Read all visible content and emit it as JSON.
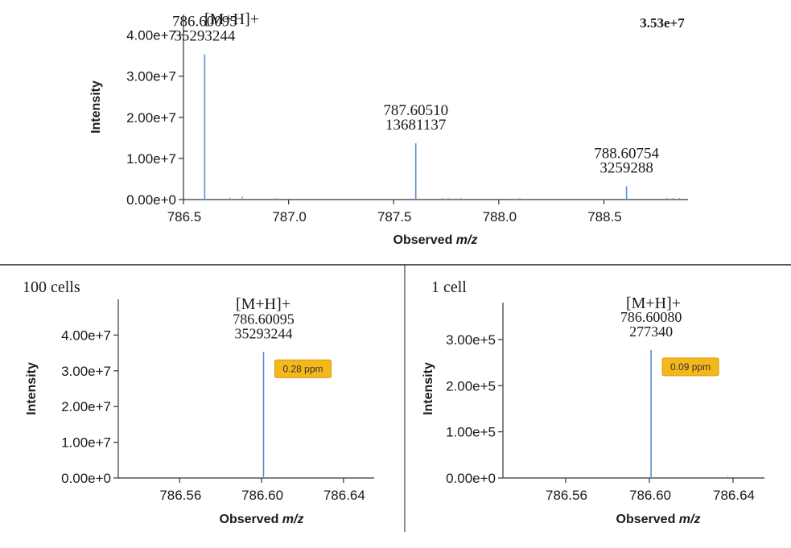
{
  "chart_data": [
    {
      "type": "mass-spectrum",
      "ion_label": "[M+H]+",
      "max_intensity_label": "3.53e+7",
      "xlabel_prefix": "Observed ",
      "xlabel_italic": "m/z",
      "ylabel": "Intensity",
      "xlim": [
        786.5,
        788.9
      ],
      "ylim": [
        0,
        45000000
      ],
      "xticks": [
        786.5,
        787.0,
        787.5,
        788.0,
        788.5
      ],
      "xtick_labels": [
        "786.5",
        "787.0",
        "787.5",
        "788.0",
        "788.5"
      ],
      "yticks": [
        0,
        10000000,
        20000000,
        30000000,
        40000000
      ],
      "ytick_labels": [
        "0.00e+0",
        "1.00e+7",
        "2.00e+7",
        "3.00e+7",
        "4.00e+7"
      ],
      "peaks": [
        {
          "mz": 786.60095,
          "intensity": 35293244,
          "mz_label": "786.60095",
          "intensity_label": "35293244"
        },
        {
          "mz": 787.6051,
          "intensity": 13681137,
          "mz_label": "787.60510",
          "intensity_label": "13681137"
        },
        {
          "mz": 788.60754,
          "intensity": 3259288,
          "mz_label": "788.60754",
          "intensity_label": "3259288"
        }
      ],
      "noise": [
        {
          "mz": 786.72,
          "intensity": 500000
        },
        {
          "mz": 786.78,
          "intensity": 800000
        },
        {
          "mz": 786.94,
          "intensity": 150000
        },
        {
          "mz": 787.73,
          "intensity": 300000
        },
        {
          "mz": 787.76,
          "intensity": 350000
        },
        {
          "mz": 787.82,
          "intensity": 200000
        },
        {
          "mz": 788.1,
          "intensity": 100000
        },
        {
          "mz": 788.8,
          "intensity": 300000
        },
        {
          "mz": 788.83,
          "intensity": 350000
        },
        {
          "mz": 788.86,
          "intensity": 300000
        }
      ]
    },
    {
      "type": "mass-spectrum",
      "sample_label": "100 cells",
      "ion_label": "[M+H]+",
      "ppm_label": "0.28 ppm",
      "xlabel_prefix": "Observed ",
      "xlabel_italic": "m/z",
      "ylabel": "Intensity",
      "xlim": [
        786.53,
        786.655
      ],
      "ylim": [
        0,
        50000000
      ],
      "xticks": [
        786.56,
        786.6,
        786.64
      ],
      "xtick_labels": [
        "786.56",
        "786.60",
        "786.64"
      ],
      "yticks": [
        0,
        10000000,
        20000000,
        30000000,
        40000000
      ],
      "ytick_labels": [
        "0.00e+0",
        "1.00e+7",
        "2.00e+7",
        "3.00e+7",
        "4.00e+7"
      ],
      "peaks": [
        {
          "mz": 786.60095,
          "intensity": 35293244,
          "mz_label": "786.60095",
          "intensity_label": "35293244"
        }
      ],
      "noise": []
    },
    {
      "type": "mass-spectrum",
      "sample_label": "1 cell",
      "ion_label": "[M+H]+",
      "ppm_label": "0.09 ppm",
      "xlabel_prefix": "Observed ",
      "xlabel_italic": "m/z",
      "ylabel": "Intensity",
      "xlim": [
        786.53,
        786.655
      ],
      "ylim": [
        0,
        380000
      ],
      "xticks": [
        786.56,
        786.6,
        786.64
      ],
      "xtick_labels": [
        "786.56",
        "786.60",
        "786.64"
      ],
      "yticks": [
        0,
        100000,
        200000,
        300000
      ],
      "ytick_labels": [
        "0.00e+0",
        "1.00e+5",
        "2.00e+5",
        "3.00e+5"
      ],
      "peaks": [
        {
          "mz": 786.6008,
          "intensity": 277340,
          "mz_label": "786.60080",
          "intensity_label": "277340"
        }
      ],
      "noise": [
        {
          "mz": 786.6375,
          "intensity": 4000
        }
      ]
    }
  ],
  "colors": {
    "peak": "#5b8fcf",
    "axis": "#333333",
    "divider": "#222222",
    "ppm_fill": "#f5b81c",
    "ppm_stroke": "#d99a00"
  }
}
